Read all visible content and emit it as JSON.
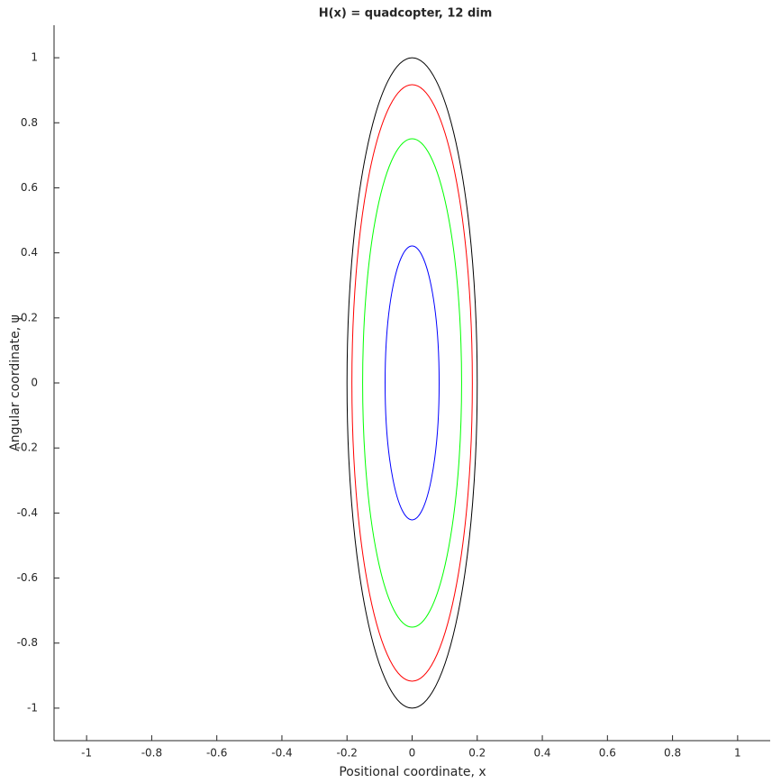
{
  "chart_data": {
    "type": "ellipse",
    "title": "H(x) = quadcopter, 12 dim",
    "xlabel": "Positional coordinate, x",
    "ylabel": "Angular coordinate, ψ",
    "xlim": [
      -1.1,
      1.1
    ],
    "ylim": [
      -1.1,
      1.1
    ],
    "xticks": [
      -1,
      -0.8,
      -0.6,
      -0.4,
      -0.2,
      0,
      0.2,
      0.4,
      0.6,
      0.8,
      1
    ],
    "yticks": [
      -1,
      -0.8,
      -0.6,
      -0.4,
      -0.2,
      0,
      0.2,
      0.4,
      0.6,
      0.8,
      1
    ],
    "grid": false,
    "series": [
      {
        "color": "#000000",
        "cx": 0,
        "cy": 0,
        "rx": 0.2,
        "ry": 1
      },
      {
        "color": "#ff0000",
        "cx": 0,
        "cy": 0,
        "rx": 0.185,
        "ry": 0.917
      },
      {
        "color": "#00ff00",
        "cx": 0,
        "cy": 0,
        "rx": 0.152,
        "ry": 0.751
      },
      {
        "color": "#0000ff",
        "cx": 0,
        "cy": 0,
        "rx": 0.083,
        "ry": 0.421
      }
    ]
  }
}
